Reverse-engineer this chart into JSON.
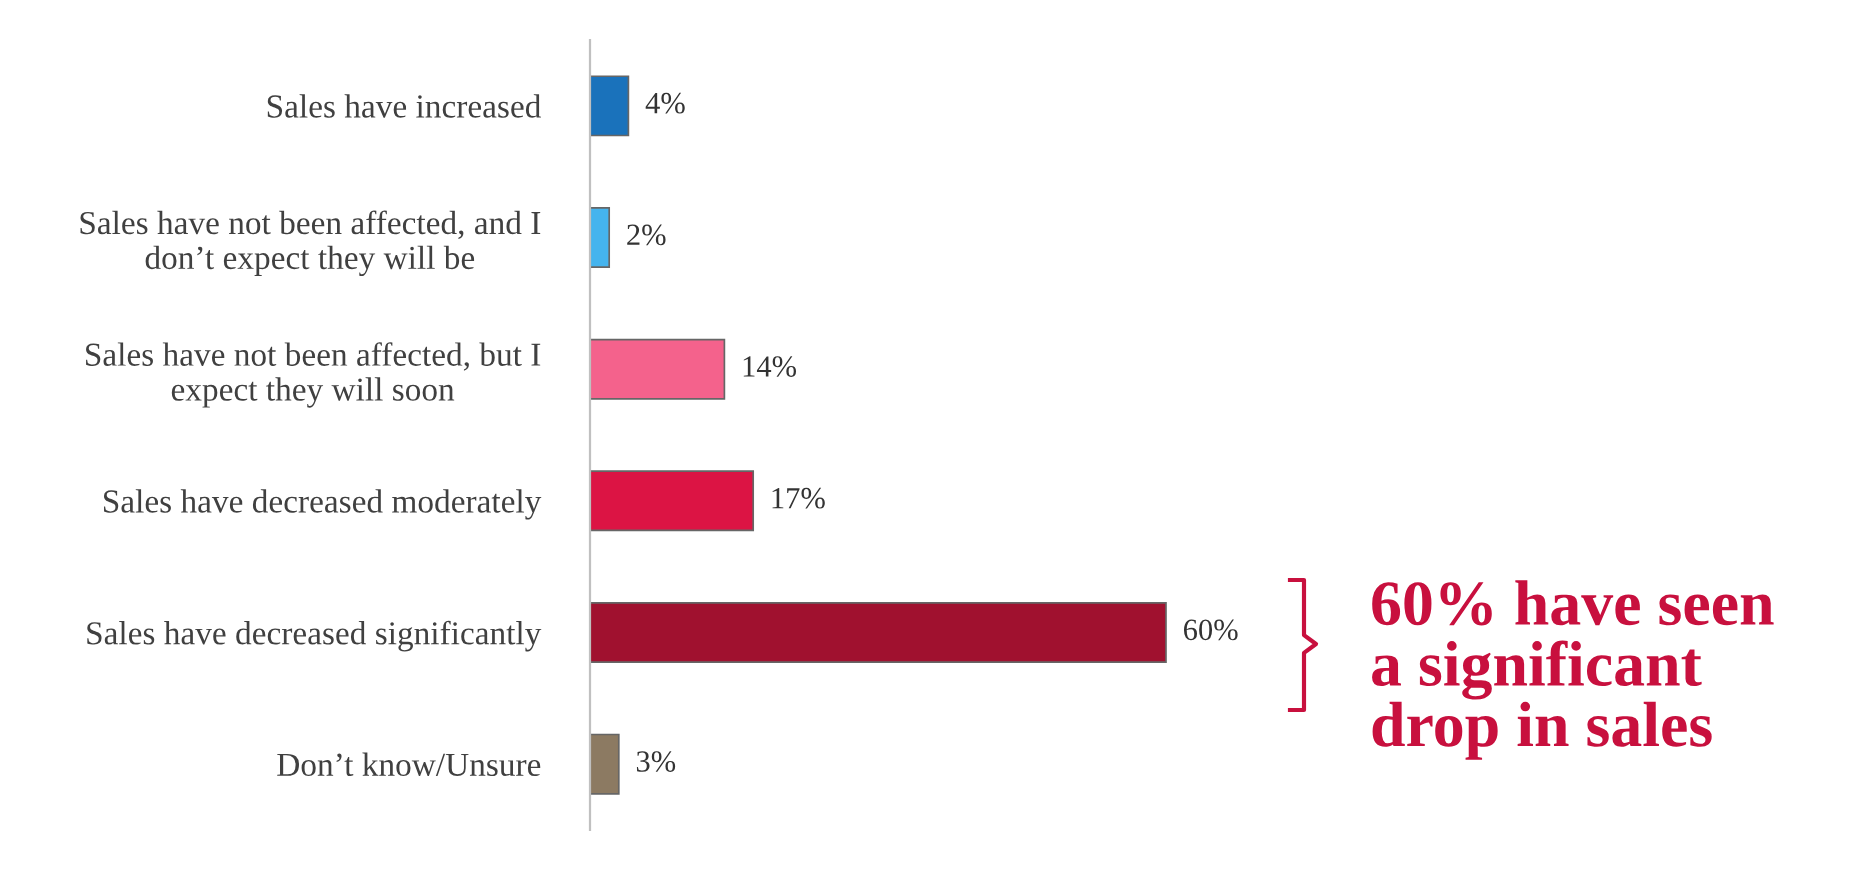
{
  "chart_data": {
    "type": "bar",
    "orientation": "horizontal",
    "categories": [
      "Sales have increased",
      "Sales have not been affected, and I\ndon’t expect they will be",
      "Sales have not been affected, but I\nexpect they will soon",
      "Sales have decreased moderately",
      "Sales have decreased significantly",
      "Don’t know/Unsure"
    ],
    "values": [
      4,
      2,
      14,
      17,
      60,
      3
    ],
    "colors": [
      "#1a72bb",
      "#45b4ee",
      "#f4628c",
      "#dc1444",
      "#a0112f",
      "#8c7a62"
    ],
    "value_labels": [
      "4%",
      "2%",
      "14%",
      "17%",
      "60%",
      "3%"
    ],
    "tick_labels": "y",
    "grid": false,
    "legend": false,
    "annotations": [
      "60% have seen\na significant\ndrop in sales"
    ]
  }
}
